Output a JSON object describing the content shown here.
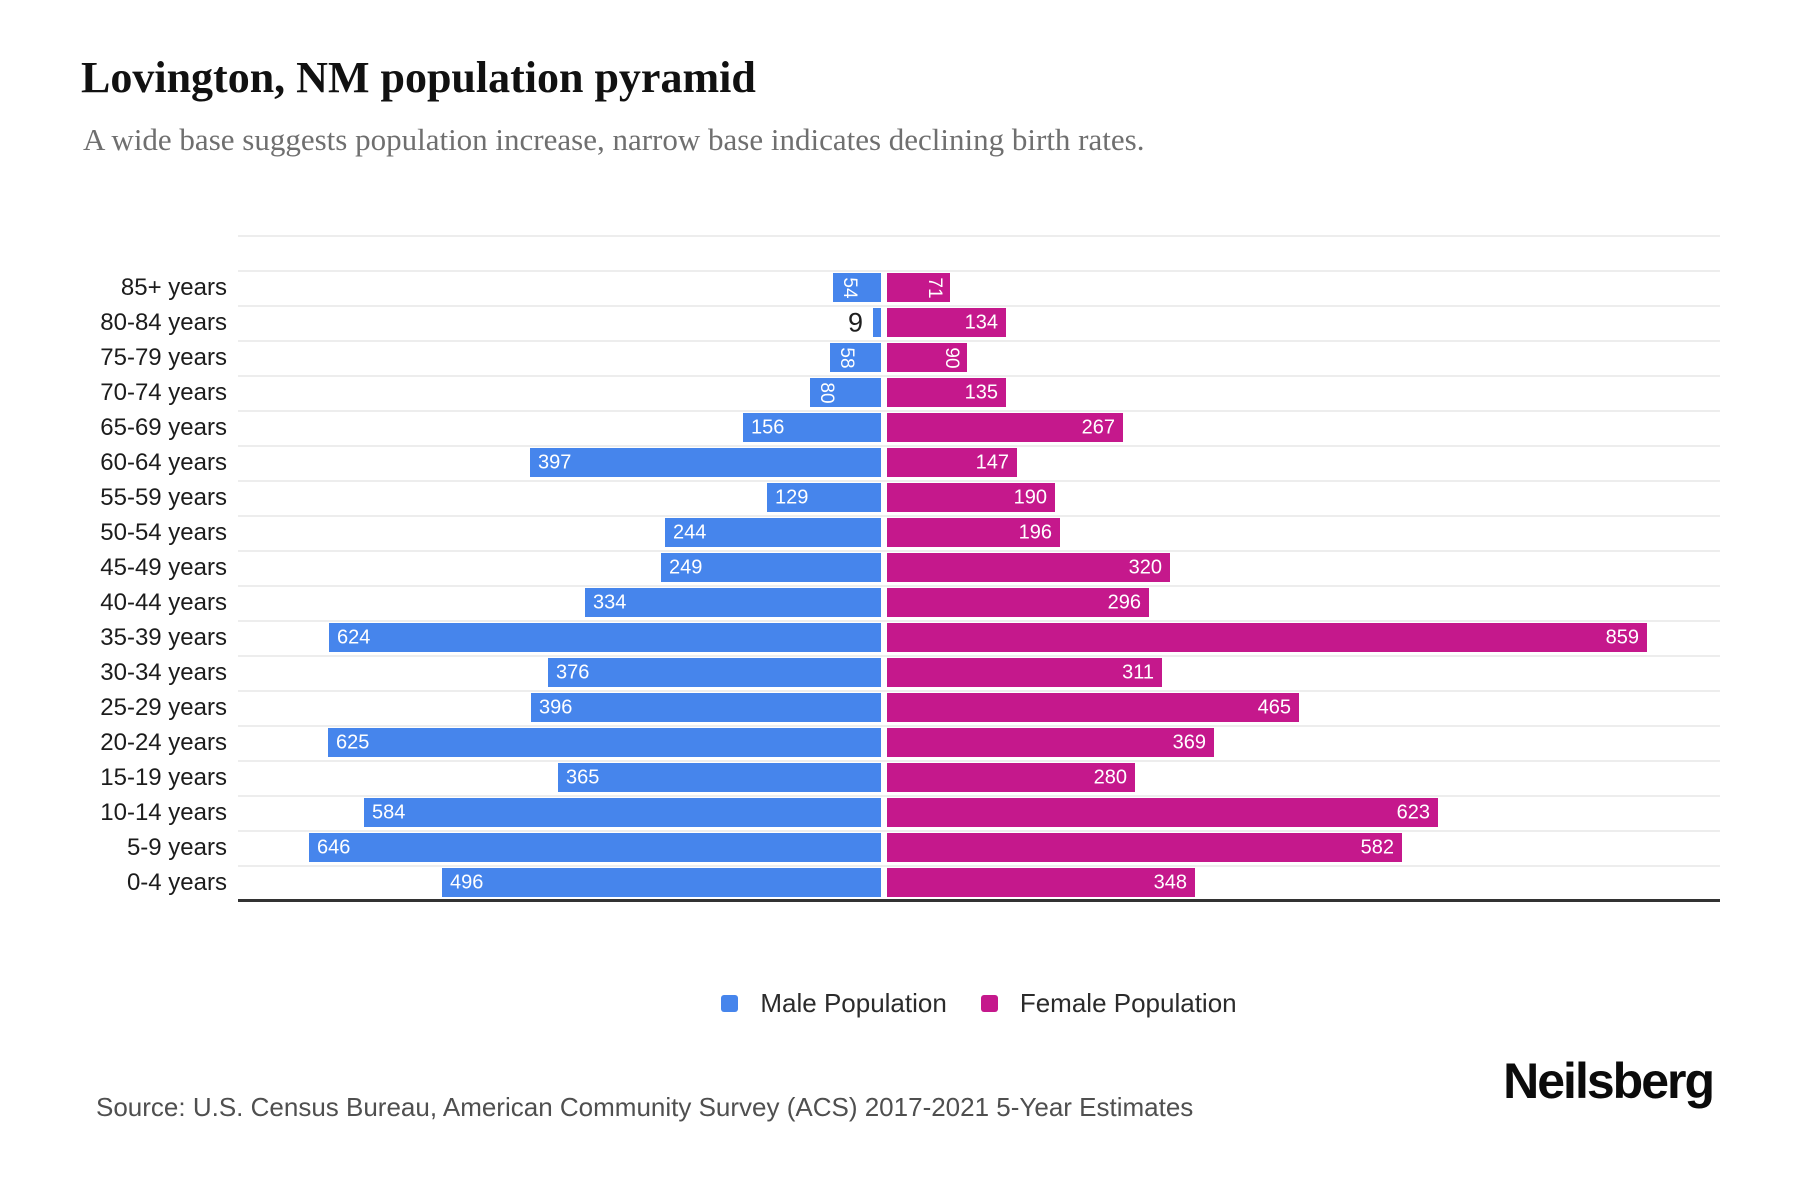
{
  "header": {
    "title": "Lovington, NM population pyramid",
    "subtitle": "A wide base suggests population increase, narrow base indicates declining birth rates."
  },
  "chart_data": {
    "type": "bar",
    "variant": "population_pyramid",
    "title": "Lovington, NM population pyramid",
    "subtitle": "A wide base suggests population increase, narrow base indicates declining birth rates.",
    "categories": [
      "85+ years",
      "80-84 years",
      "75-79 years",
      "70-74 years",
      "65-69 years",
      "60-64 years",
      "55-59 years",
      "50-54 years",
      "45-49 years",
      "40-44 years",
      "35-39 years",
      "30-34 years",
      "25-29 years",
      "20-24 years",
      "15-19 years",
      "10-14 years",
      "5-9 years",
      "0-4 years"
    ],
    "series": [
      {
        "name": "Male Population",
        "side": "left",
        "color": "#4685EC",
        "values": [
          54,
          9,
          58,
          80,
          156,
          397,
          129,
          244,
          249,
          334,
          624,
          376,
          396,
          625,
          365,
          584,
          646,
          496
        ]
      },
      {
        "name": "Female Population",
        "side": "right",
        "color": "#C5188C",
        "values": [
          71,
          134,
          90,
          135,
          267,
          147,
          190,
          196,
          320,
          296,
          859,
          311,
          465,
          369,
          280,
          623,
          582,
          348
        ]
      }
    ],
    "value_labels": "shown at bar ends",
    "grid": "horizontal",
    "x_axis_tick_labels": "hidden",
    "legend_position": "bottom-center"
  },
  "legend": {
    "items": [
      {
        "label": "Male Population",
        "color": "#4685EC"
      },
      {
        "label": "Female Population",
        "color": "#C5188C"
      }
    ]
  },
  "footer": {
    "source": "Source: U.S. Census Bureau, American Community Survey (ACS) 2017-2021 5-Year Estimates",
    "brand": "Neilsberg"
  },
  "colors": {
    "male": "#4685EC",
    "female": "#C5188C",
    "gridline": "#EDEDED",
    "axis_line": "#333333",
    "tick_label": "#1C1C1C",
    "value_inside": "#FFFFFF",
    "value_outside": "#1F1F1F",
    "subtitle": "#6F6F6F",
    "source": "#4F4F4F",
    "background": "#FFFFFF"
  }
}
